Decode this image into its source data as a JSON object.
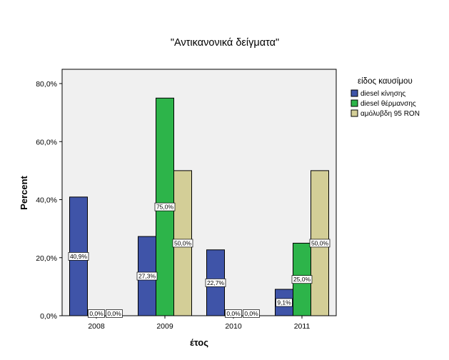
{
  "chart_data": {
    "type": "bar",
    "title": "\"Αντικανονικά δείγματα\"",
    "xlabel": "έτος",
    "ylabel": "Percent",
    "categories": [
      "2008",
      "2009",
      "2010",
      "2011"
    ],
    "series": [
      {
        "name": "diesel κίνησης",
        "color": "#3f54a8",
        "values": [
          40.9,
          27.3,
          22.7,
          9.1
        ],
        "labels": [
          "40,9%",
          "27,3%",
          "22,7%",
          "9,1%"
        ]
      },
      {
        "name": "diesel θέρμανσης",
        "color": "#2db44a",
        "values": [
          0.0,
          75.0,
          0.0,
          25.0
        ],
        "labels": [
          "0,0%",
          "75,0%",
          "0,0%",
          "25,0%"
        ]
      },
      {
        "name": "αμόλυβδη 95 RON",
        "color": "#d3ce97",
        "values": [
          0.0,
          50.0,
          0.0,
          50.0
        ],
        "labels": [
          "0,0%",
          "50,0%",
          "0,0%",
          "50,0%"
        ]
      }
    ],
    "ylim": [
      0,
      80
    ],
    "yticks": [
      0,
      20,
      40,
      60,
      80
    ],
    "ytick_labels": [
      "0,0%",
      "20,0%",
      "40,0%",
      "60,0%",
      "80,0%"
    ],
    "legend_title": "είδος καυσίμου",
    "legend_position": "right",
    "plot_background": "#f0f0f0",
    "grid": false
  }
}
